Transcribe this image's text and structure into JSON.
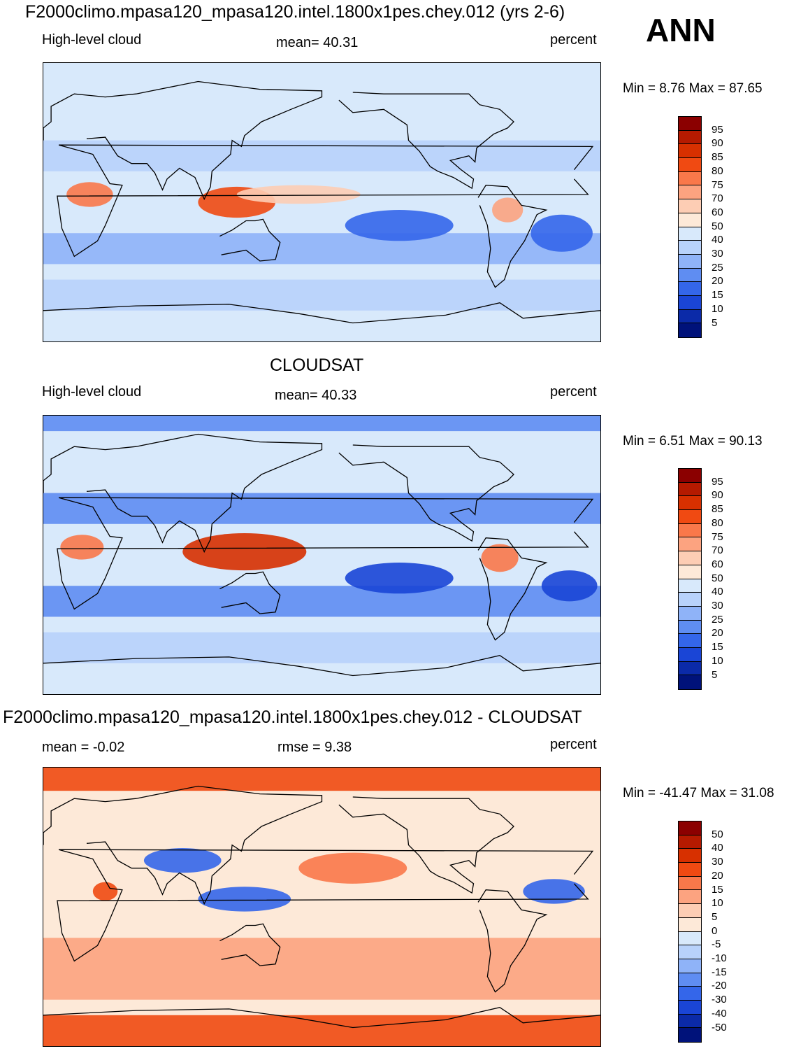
{
  "season": "ANN",
  "panels": [
    {
      "id": "model",
      "title": "F2000climo.mpasa120_mpasa120.intel.1800x1pes.chey.012 (yrs 2-6)",
      "left": "High-level cloud",
      "center": "mean=  40.31",
      "right": "percent",
      "minmax": "Min =    8.76 Max =  87.65",
      "colorbar": {
        "labels": [
          "95",
          "90",
          "85",
          "80",
          "75",
          "70",
          "60",
          "50",
          "40",
          "30",
          "25",
          "20",
          "15",
          "10",
          "5"
        ],
        "colors": [
          "#8b0000",
          "#b51a00",
          "#d73000",
          "#f04a12",
          "#f9784a",
          "#fca380",
          "#fdcdb4",
          "#fde9d8",
          "#d8e9fb",
          "#b8d2fb",
          "#8fb3f8",
          "#5f8df2",
          "#3466ea",
          "#1a45d6",
          "#0b2aa8",
          "#00127a"
        ]
      },
      "map": {
        "lon_range": [
          0,
          360
        ],
        "lat_range": [
          -90,
          90
        ],
        "features": [
          {
            "type": "band",
            "lat": [
              50,
              90
            ],
            "value": 40
          },
          {
            "type": "band",
            "lat": [
              20,
              40
            ],
            "value": 30
          },
          {
            "type": "band",
            "lat": [
              -40,
              -20
            ],
            "value": 25
          },
          {
            "type": "band",
            "lat": [
              -70,
              -50
            ],
            "value": 30
          },
          {
            "type": "blob",
            "lon": 125,
            "lat": 0,
            "rlon": 25,
            "rlat": 10,
            "value": 80
          },
          {
            "type": "blob",
            "lon": 30,
            "lat": 5,
            "rlon": 15,
            "rlat": 8,
            "value": 75
          },
          {
            "type": "blob",
            "lon": 165,
            "lat": 5,
            "rlon": 40,
            "rlat": 6,
            "value": 60
          },
          {
            "type": "blob",
            "lon": 230,
            "lat": -15,
            "rlon": 35,
            "rlat": 10,
            "value": 15
          },
          {
            "type": "blob",
            "lon": 335,
            "lat": -20,
            "rlon": 20,
            "rlat": 12,
            "value": 15
          },
          {
            "type": "blob",
            "lon": 300,
            "lat": -5,
            "rlon": 10,
            "rlat": 8,
            "value": 70
          }
        ]
      }
    },
    {
      "id": "obs",
      "title": "CLOUDSAT",
      "left": "High-level cloud",
      "center": "mean=  40.33",
      "right": "percent",
      "minmax": "Min =    6.51 Max =  90.13",
      "colorbar": {
        "labels": [
          "95",
          "90",
          "85",
          "80",
          "75",
          "70",
          "60",
          "50",
          "40",
          "30",
          "25",
          "20",
          "15",
          "10",
          "5"
        ],
        "colors": [
          "#8b0000",
          "#b51a00",
          "#d73000",
          "#f04a12",
          "#f9784a",
          "#fca380",
          "#fdcdb4",
          "#fde9d8",
          "#d8e9fb",
          "#b8d2fb",
          "#8fb3f8",
          "#5f8df2",
          "#3466ea",
          "#1a45d6",
          "#0b2aa8",
          "#00127a"
        ]
      },
      "map": {
        "lon_range": [
          0,
          360
        ],
        "lat_range": [
          -90,
          90
        ],
        "features": [
          {
            "type": "band",
            "lat": [
              80,
              90
            ],
            "value": 20
          },
          {
            "type": "band",
            "lat": [
              20,
              40
            ],
            "value": 20
          },
          {
            "type": "band",
            "lat": [
              -40,
              -20
            ],
            "value": 20
          },
          {
            "type": "band",
            "lat": [
              -70,
              -50
            ],
            "value": 30
          },
          {
            "type": "blob",
            "lon": 130,
            "lat": 2,
            "rlon": 40,
            "rlat": 12,
            "value": 85
          },
          {
            "type": "blob",
            "lon": 25,
            "lat": 5,
            "rlon": 14,
            "rlat": 8,
            "value": 75
          },
          {
            "type": "blob",
            "lon": 230,
            "lat": -15,
            "rlon": 35,
            "rlat": 10,
            "value": 10
          },
          {
            "type": "blob",
            "lon": 340,
            "lat": -20,
            "rlon": 18,
            "rlat": 10,
            "value": 10
          },
          {
            "type": "blob",
            "lon": 295,
            "lat": -2,
            "rlon": 12,
            "rlat": 9,
            "value": 75
          }
        ]
      }
    },
    {
      "id": "diff",
      "title": "F2000climo.mpasa120_mpasa120.intel.1800x1pes.chey.012 - CLOUDSAT",
      "left": "mean =   -0.02",
      "center": "rmse =    9.38",
      "right": "percent",
      "minmax": "Min = -41.47 Max =  31.08",
      "colorbar": {
        "labels": [
          "50",
          "40",
          "30",
          "20",
          "15",
          "10",
          "5",
          "0",
          "-5",
          "-10",
          "-15",
          "-20",
          "-30",
          "-40",
          "-50"
        ],
        "colors": [
          "#8b0000",
          "#b51a00",
          "#d73000",
          "#f04a12",
          "#f9784a",
          "#fca380",
          "#fdcdb4",
          "#fde9d8",
          "#d8e9fb",
          "#b8d2fb",
          "#8fb3f8",
          "#5f8df2",
          "#3466ea",
          "#1a45d6",
          "#0b2aa8",
          "#00127a"
        ]
      },
      "map": {
        "lon_range": [
          0,
          360
        ],
        "lat_range": [
          -90,
          90
        ],
        "features": [
          {
            "type": "band",
            "lat": [
              75,
              90
            ],
            "value": 20
          },
          {
            "type": "band",
            "lat": [
              -60,
              -20
            ],
            "value": 10
          },
          {
            "type": "band",
            "lat": [
              -90,
              -70
            ],
            "value": 20
          },
          {
            "type": "blob",
            "lon": 90,
            "lat": 30,
            "rlon": 25,
            "rlat": 8,
            "value": -30
          },
          {
            "type": "blob",
            "lon": 130,
            "lat": 5,
            "rlon": 30,
            "rlat": 8,
            "value": -25
          },
          {
            "type": "blob",
            "lon": 330,
            "lat": 10,
            "rlon": 20,
            "rlat": 8,
            "value": -25
          },
          {
            "type": "blob",
            "lon": 200,
            "lat": 25,
            "rlon": 35,
            "rlat": 10,
            "value": 15
          },
          {
            "type": "blob",
            "lon": 40,
            "lat": 10,
            "rlon": 8,
            "rlat": 6,
            "value": 20
          }
        ]
      }
    }
  ]
}
